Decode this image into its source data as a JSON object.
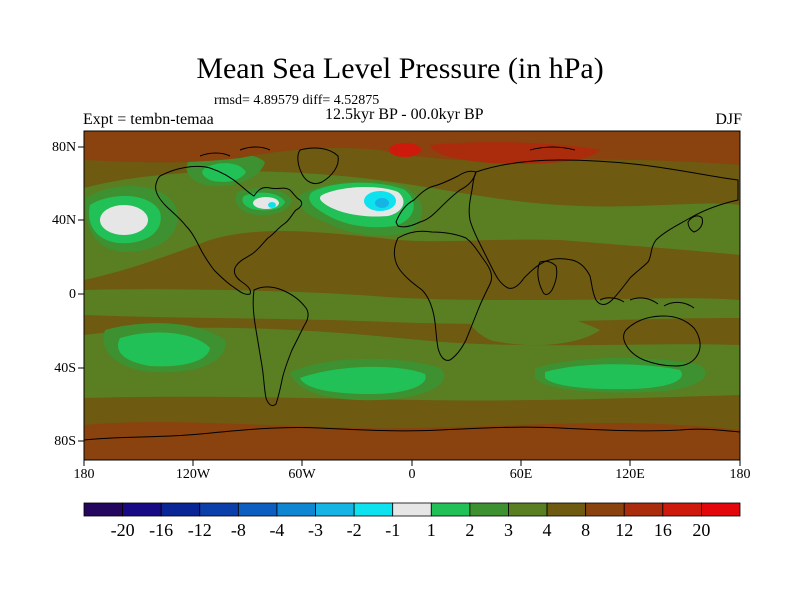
{
  "title": "Mean Sea Level Pressure (in hPa)",
  "stats": "rmsd= 4.89579 diff= 4.52875",
  "period": "12.5kyr BP - 00.0kyr BP",
  "experiment": "Expt = tembn-temaa",
  "season": "DJF",
  "lat_labels": [
    "80N",
    "40N",
    "0",
    "40S",
    "80S"
  ],
  "lon_labels": [
    "180",
    "120W",
    "60W",
    "0",
    "60E",
    "120E",
    "180"
  ],
  "colorbar": {
    "labels": [
      "-20",
      "-16",
      "-12",
      "-8",
      "-4",
      "-3",
      "-2",
      "-1",
      "1",
      "2",
      "3",
      "4",
      "8",
      "12",
      "16",
      "20"
    ],
    "colors": [
      "#25065f",
      "#180a84",
      "#0a2596",
      "#0b40aa",
      "#0c5ec0",
      "#0e86d2",
      "#16b4e4",
      "#0ee2ef",
      "#e6e6e6",
      "#22c157",
      "#3e9130",
      "#5a7e22",
      "#6e5a10",
      "#8a420e",
      "#ab2c0c",
      "#cd1a0c",
      "#e3060a"
    ]
  },
  "map_colors": {
    "background": "#6e5a10",
    "positive_4_8": "#5a7e22",
    "positive_3_4": "#3e9130",
    "positive_2_3": "#22c157",
    "near_zero": "#e6e6e6",
    "negative_2": "#16b4e4",
    "negative_3": "#0ee2ef",
    "positive_12": "#8a420e",
    "positive_16": "#ab2c0c",
    "positive_20": "#cd1a0c",
    "coastline": "#000000"
  }
}
